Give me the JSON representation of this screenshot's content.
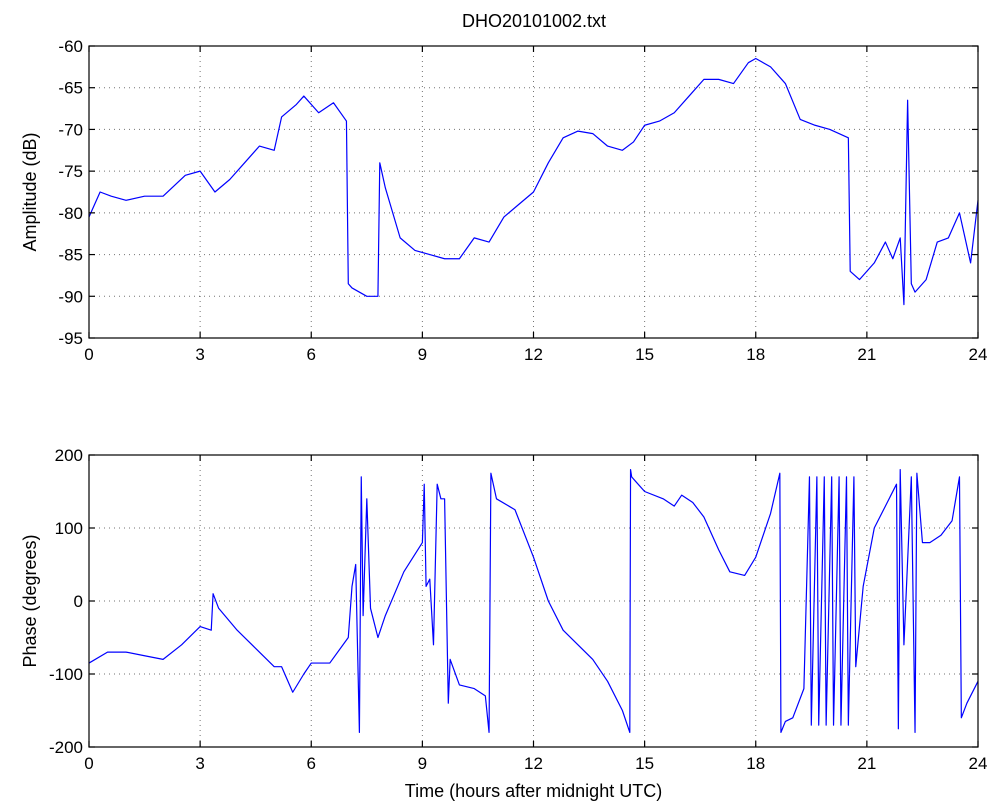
{
  "figure": {
    "title": "DHO20101002.txt"
  },
  "colors": {
    "line": "#0000ff",
    "axes": "#000000",
    "background": "#ffffff"
  },
  "chart_data": [
    {
      "type": "line",
      "title": "DHO20101002.txt",
      "xlabel": "",
      "ylabel": "Amplitude (dB)",
      "xlim": [
        0,
        24
      ],
      "ylim": [
        -95,
        -60
      ],
      "xticks": [
        0,
        3,
        6,
        9,
        12,
        15,
        18,
        21,
        24
      ],
      "yticks": [
        -95,
        -90,
        -85,
        -80,
        -75,
        -70,
        -65,
        -60
      ],
      "grid": true,
      "series": [
        {
          "x": [
            0,
            0.3,
            0.6,
            1.0,
            1.5,
            2.0,
            2.6,
            3.0,
            3.4,
            3.8,
            4.2,
            4.6,
            5.0,
            5.2,
            5.6,
            5.8,
            6.2,
            6.6,
            6.95,
            7.0,
            7.1,
            7.5,
            7.8,
            7.85,
            8.0,
            8.4,
            8.8,
            9.2,
            9.6,
            10.0,
            10.4,
            10.8,
            11.2,
            11.6,
            12.0,
            12.4,
            12.8,
            13.2,
            13.6,
            14.0,
            14.4,
            14.7,
            15.0,
            15.4,
            15.8,
            16.2,
            16.6,
            17.0,
            17.4,
            17.8,
            18.0,
            18.4,
            18.8,
            19.2,
            19.6,
            20.0,
            20.5,
            20.55,
            20.8,
            21.2,
            21.5,
            21.7,
            21.9,
            22.0,
            22.1,
            22.2,
            22.3,
            22.6,
            22.9,
            23.2,
            23.5,
            23.8,
            24.0
          ],
          "y": [
            -80.5,
            -77.5,
            -78.0,
            -78.5,
            -78.0,
            -78.0,
            -75.5,
            -75.0,
            -77.5,
            -76.0,
            -74.0,
            -72.0,
            -72.5,
            -68.5,
            -67.0,
            -66.0,
            -68.0,
            -66.8,
            -69.0,
            -88.5,
            -89.0,
            -90.0,
            -90.0,
            -74.0,
            -77.0,
            -83.0,
            -84.5,
            -85.0,
            -85.5,
            -85.5,
            -83.0,
            -83.5,
            -80.5,
            -79.0,
            -77.5,
            -74.0,
            -71.0,
            -70.2,
            -70.5,
            -72.0,
            -72.5,
            -71.5,
            -69.5,
            -69.0,
            -68.0,
            -66.0,
            -64.0,
            -64.0,
            -64.5,
            -62.0,
            -61.5,
            -62.5,
            -64.5,
            -68.8,
            -69.5,
            -70.0,
            -71.0,
            -87.0,
            -88.0,
            -86.0,
            -83.5,
            -85.5,
            -83.0,
            -91.0,
            -66.5,
            -88.5,
            -89.5,
            -88.0,
            -83.5,
            -83.0,
            -80.0,
            -86.0,
            -78.5
          ]
        }
      ]
    },
    {
      "type": "line",
      "title": "",
      "xlabel": "Time (hours after midnight UTC)",
      "ylabel": "Phase (degrees)",
      "xlim": [
        0,
        24
      ],
      "ylim": [
        -200,
        200
      ],
      "xticks": [
        0,
        3,
        6,
        9,
        12,
        15,
        18,
        21,
        24
      ],
      "yticks": [
        -200,
        -100,
        0,
        100,
        200
      ],
      "grid": true,
      "series": [
        {
          "x": [
            0,
            0.5,
            1.0,
            1.5,
            2.0,
            2.5,
            3.0,
            3.3,
            3.35,
            3.5,
            4.0,
            4.5,
            5.0,
            5.2,
            5.5,
            5.8,
            6.0,
            6.5,
            7.0,
            7.1,
            7.2,
            7.3,
            7.35,
            7.4,
            7.5,
            7.6,
            7.8,
            8.0,
            8.5,
            9.0,
            9.05,
            9.1,
            9.2,
            9.3,
            9.4,
            9.5,
            9.6,
            9.7,
            9.75,
            10.0,
            10.4,
            10.7,
            10.8,
            10.85,
            11.0,
            11.5,
            12.0,
            12.4,
            12.8,
            13.2,
            13.6,
            14.0,
            14.4,
            14.6,
            14.62,
            14.65,
            15.0,
            15.5,
            15.8,
            16.0,
            16.3,
            16.6,
            17.0,
            17.3,
            17.7,
            18.0,
            18.4,
            18.65,
            18.68,
            18.8,
            19.0,
            19.3,
            19.45,
            19.5,
            19.65,
            19.7,
            19.85,
            19.9,
            20.05,
            20.1,
            20.25,
            20.3,
            20.45,
            20.5,
            20.65,
            20.7,
            20.9,
            21.2,
            21.5,
            21.8,
            21.85,
            21.9,
            22.0,
            22.2,
            22.3,
            22.35,
            22.5,
            22.7,
            23.0,
            23.3,
            23.5,
            23.55,
            23.7,
            24.0
          ],
          "y": [
            -85,
            -70,
            -70,
            -75,
            -80,
            -60,
            -35,
            -40,
            10,
            -10,
            -40,
            -65,
            -90,
            -90,
            -125,
            -100,
            -85,
            -85,
            -50,
            20,
            50,
            -180,
            170,
            -20,
            140,
            -10,
            -50,
            -20,
            40,
            80,
            160,
            20,
            30,
            -60,
            160,
            140,
            140,
            -140,
            -80,
            -115,
            -120,
            -130,
            -180,
            175,
            140,
            125,
            60,
            0,
            -40,
            -60,
            -80,
            -110,
            -150,
            -180,
            180,
            170,
            150,
            140,
            130,
            145,
            135,
            115,
            70,
            40,
            35,
            60,
            120,
            175,
            -180,
            -165,
            -160,
            -120,
            170,
            -170,
            170,
            -170,
            170,
            -170,
            170,
            -170,
            170,
            -170,
            170,
            -170,
            170,
            -90,
            20,
            100,
            130,
            160,
            -175,
            180,
            -60,
            170,
            -180,
            175,
            80,
            80,
            90,
            110,
            170,
            -160,
            -140,
            -110
          ]
        }
      ]
    }
  ]
}
